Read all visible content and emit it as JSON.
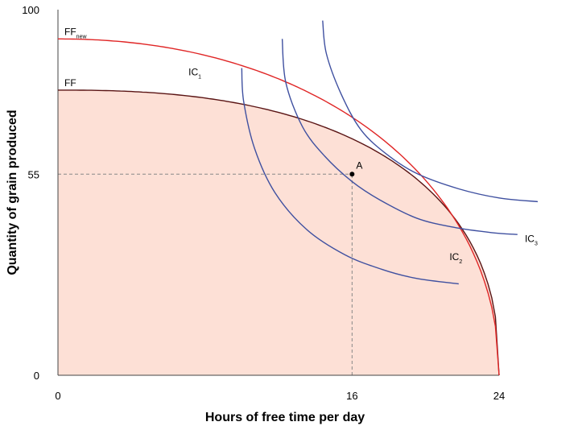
{
  "chart_data": {
    "type": "line",
    "xlabel": "Hours of free time per day",
    "ylabel": "Quantity of grain produced",
    "xlim": [
      0,
      24
    ],
    "ylim": [
      0,
      100
    ],
    "xticks": [
      "0",
      "16",
      "24"
    ],
    "yticks": [
      "0",
      "55",
      "100"
    ],
    "grid": false,
    "shaded_region": {
      "under": "FF",
      "color": "#fde0d6"
    },
    "series": [
      {
        "name": "FF",
        "kind": "frontier",
        "color": "#5a1414",
        "x_intercept": 24,
        "y_intercept": 78,
        "shape_exponent": 2.46
      },
      {
        "name": "FF",
        "name_sub": "new",
        "kind": "frontier",
        "color": "#e02626",
        "x_intercept": 24,
        "y_intercept": 92,
        "shape_exponent": 2.1
      },
      {
        "name": "IC",
        "name_sub": "1",
        "kind": "indifference",
        "color": "#3f50a0",
        "label_x": 7.1,
        "label_y": 82,
        "points": [
          [
            10,
            84
          ],
          [
            10.1,
            75
          ],
          [
            10.7,
            62
          ],
          [
            11.8,
            50
          ],
          [
            13.5,
            40
          ],
          [
            15.6,
            33
          ],
          [
            17.6,
            29
          ],
          [
            19.5,
            26.5
          ],
          [
            21.8,
            25
          ]
        ]
      },
      {
        "name": "IC",
        "name_sub": "2",
        "kind": "indifference",
        "color": "#3f50a0",
        "label_x": 21.3,
        "label_y": 31.5,
        "points": [
          [
            12.2,
            92
          ],
          [
            12.4,
            80
          ],
          [
            13.3,
            68
          ],
          [
            14.5,
            60
          ],
          [
            16,
            53
          ],
          [
            17.5,
            48
          ],
          [
            19.5,
            43
          ],
          [
            21.5,
            40.5
          ],
          [
            23.6,
            39
          ],
          [
            25,
            38.5
          ]
        ]
      },
      {
        "name": "IC",
        "name_sub": "3",
        "kind": "indifference",
        "color": "#3f50a0",
        "label_x": 25.4,
        "label_y": 36.5,
        "points": [
          [
            14.4,
            97
          ],
          [
            14.6,
            88
          ],
          [
            15.4,
            77
          ],
          [
            16.5,
            67
          ],
          [
            18,
            60
          ],
          [
            19.6,
            55
          ],
          [
            21.8,
            51
          ],
          [
            24,
            48.5
          ],
          [
            26.1,
            47.5
          ]
        ]
      }
    ],
    "points": [
      {
        "label": "A",
        "x": 16,
        "y": 55
      }
    ],
    "reference_lines": [
      {
        "from": [
          0,
          55
        ],
        "to": [
          16,
          55
        ]
      },
      {
        "from": [
          16,
          0
        ],
        "to": [
          16,
          55
        ]
      }
    ]
  }
}
